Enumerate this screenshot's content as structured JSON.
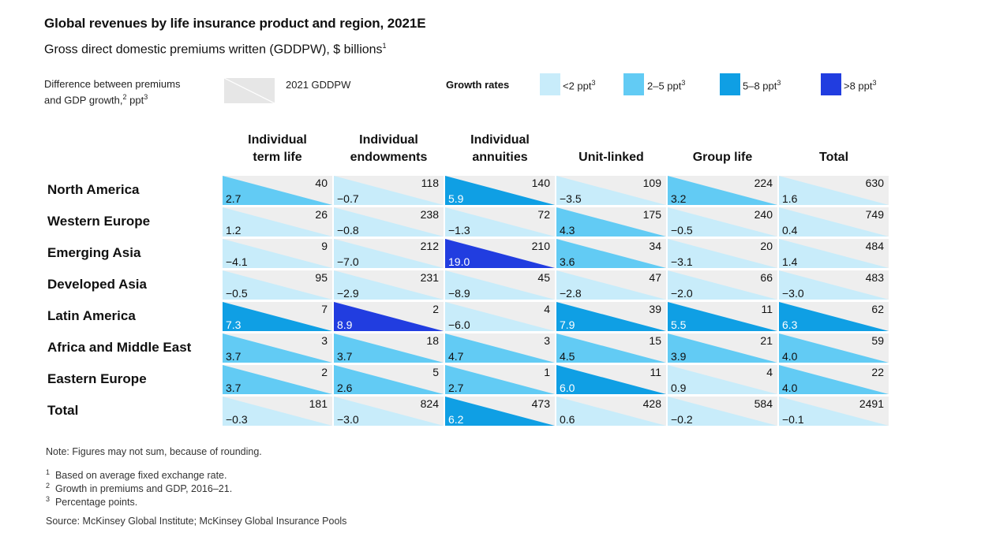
{
  "title": "Global revenues by life insurance product and region, 2021E",
  "subtitle": "Gross direct domestic premiums written (GDDPW), $ billions",
  "subtitle_footnote": "1",
  "legend": {
    "diff_label_line1": "Difference between premiums",
    "diff_label_line2": "and GDP growth,",
    "diff_label_fn": "2",
    "diff_label_unit": " ppt",
    "diff_label_unit_fn": "3",
    "gddpw_label": "2021 GDDPW",
    "growth_title": "Growth rates",
    "buckets": [
      {
        "label": "<2 ppt",
        "fn": "3",
        "color": "#c8ecfa"
      },
      {
        "label": "2–5 ppt",
        "fn": "3",
        "color": "#62cbf4"
      },
      {
        "label": "5–8 ppt",
        "fn": "3",
        "color": "#0f9fe4"
      },
      {
        "label": ">8 ppt",
        "fn": "3",
        "color": "#213de0"
      }
    ],
    "cell_bg_color": "#eeeeee"
  },
  "columns": [
    {
      "line1": "Individual",
      "line2": "term life"
    },
    {
      "line1": "Individual",
      "line2": "endowments"
    },
    {
      "line1": "Individual",
      "line2": "annuities"
    },
    {
      "line1": "",
      "line2": "Unit-linked"
    },
    {
      "line1": "",
      "line2": "Group life"
    },
    {
      "line1": "",
      "line2": "Total"
    }
  ],
  "rows": [
    {
      "label": "North America"
    },
    {
      "label": "Western Europe"
    },
    {
      "label": "Emerging Asia"
    },
    {
      "label": "Developed Asia"
    },
    {
      "label": "Latin America"
    },
    {
      "label": "Africa and Middle East"
    },
    {
      "label": "Eastern Europe"
    },
    {
      "label": "Total"
    }
  ],
  "chart_data": {
    "type": "table",
    "title": "Global revenues by life insurance product and region, 2021E",
    "subtitle": "Gross direct domestic premiums written (GDDPW), $ billions",
    "columns": [
      "Individual term life",
      "Individual endowments",
      "Individual annuities",
      "Unit-linked",
      "Group life",
      "Total"
    ],
    "rows": [
      "North America",
      "Western Europe",
      "Emerging Asia",
      "Developed Asia",
      "Latin America",
      "Africa and Middle East",
      "Eastern Europe",
      "Total"
    ],
    "gddpw_2021": [
      [
        "40",
        "118",
        "140",
        "109",
        "224",
        "630"
      ],
      [
        "26",
        "238",
        "72",
        "175",
        "240",
        "749"
      ],
      [
        "9",
        "212",
        "210",
        "34",
        "20",
        "484"
      ],
      [
        "95",
        "231",
        "45",
        "47",
        "66",
        "483"
      ],
      [
        "7",
        "2",
        "4",
        "39",
        "11",
        "62"
      ],
      [
        "3",
        "18",
        "3",
        "15",
        "21",
        "59"
      ],
      [
        "2",
        "5",
        "1",
        "11",
        "4",
        "22"
      ],
      [
        "181",
        "824",
        "473",
        "428",
        "584",
        "2491"
      ]
    ],
    "growth_diff_ppt": [
      [
        "2.7",
        "−0.7",
        "5.9",
        "−3.5",
        "3.2",
        "1.6"
      ],
      [
        "1.2",
        "−0.8",
        "−1.3",
        "4.3",
        "−0.5",
        "0.4"
      ],
      [
        "−4.1",
        "−7.0",
        "19.0",
        "3.6",
        "−3.1",
        "1.4"
      ],
      [
        "−0.5",
        "−2.9",
        "−8.9",
        "−2.8",
        "−2.0",
        "−3.0"
      ],
      [
        "7.3",
        "8.9",
        "−6.0",
        "7.9",
        "5.5",
        "6.3"
      ],
      [
        "3.7",
        "3.7",
        "4.7",
        "4.5",
        "3.9",
        "4.0"
      ],
      [
        "3.7",
        "2.6",
        "2.7",
        "6.0",
        "0.9",
        "4.0"
      ],
      [
        "−0.3",
        "−3.0",
        "6.2",
        "0.6",
        "−0.2",
        "−0.1"
      ]
    ]
  },
  "notes": {
    "note": "Note: Figures may not sum, because of rounding.",
    "fn1": "Based on average fixed exchange rate.",
    "fn2": "Growth in premiums and GDP, 2016–21.",
    "fn3": "Percentage points.",
    "fn1_mark": "1",
    "fn2_mark": "2",
    "fn3_mark": "3",
    "source": "Source: McKinsey Global Institute; McKinsey Global Insurance Pools"
  }
}
